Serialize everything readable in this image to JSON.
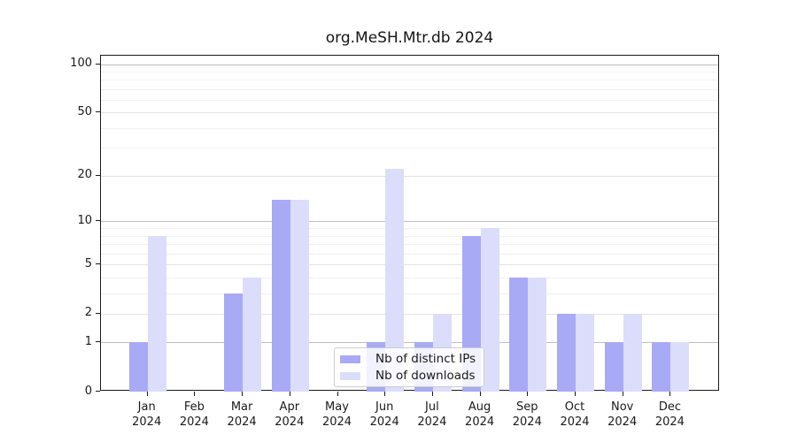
{
  "chart_data": {
    "type": "bar",
    "title": "org.MeSH.Mtr.db 2024",
    "categories": [
      {
        "month": "Jan",
        "year": "2024"
      },
      {
        "month": "Feb",
        "year": "2024"
      },
      {
        "month": "Mar",
        "year": "2024"
      },
      {
        "month": "Apr",
        "year": "2024"
      },
      {
        "month": "May",
        "year": "2024"
      },
      {
        "month": "Jun",
        "year": "2024"
      },
      {
        "month": "Jul",
        "year": "2024"
      },
      {
        "month": "Aug",
        "year": "2024"
      },
      {
        "month": "Sep",
        "year": "2024"
      },
      {
        "month": "Oct",
        "year": "2024"
      },
      {
        "month": "Nov",
        "year": "2024"
      },
      {
        "month": "Dec",
        "year": "2024"
      }
    ],
    "series": [
      {
        "name": "Nb of distinct IPs",
        "color": "#a8aaf5",
        "values": [
          1,
          0,
          3,
          14,
          0,
          1,
          1,
          8,
          4,
          2,
          1,
          1
        ]
      },
      {
        "name": "Nb of downloads",
        "color": "#dcddfa",
        "values": [
          8,
          0,
          4,
          14,
          0,
          22,
          2,
          9,
          4,
          2,
          2,
          1
        ]
      }
    ],
    "y_ticks": [
      0,
      1,
      2,
      5,
      10,
      20,
      50,
      100
    ],
    "y_minor_gridlines": [
      3,
      4,
      6,
      7,
      8,
      9,
      30,
      40,
      60,
      70,
      80,
      90
    ],
    "y_decade_gridlines": [
      1,
      10,
      100
    ],
    "scale": "log10(1+v)",
    "ylim": [
      0,
      115
    ],
    "grid": true,
    "legend_position": "inside-bottom-center",
    "colors": {
      "distinct_ips": "#a8aaf5",
      "downloads": "#dcddfa",
      "axis": "#1a1a1a",
      "grid_decade": "#bdbdbd",
      "grid_major": "#e2e2e2",
      "grid_minor": "#f0f0f0"
    }
  }
}
